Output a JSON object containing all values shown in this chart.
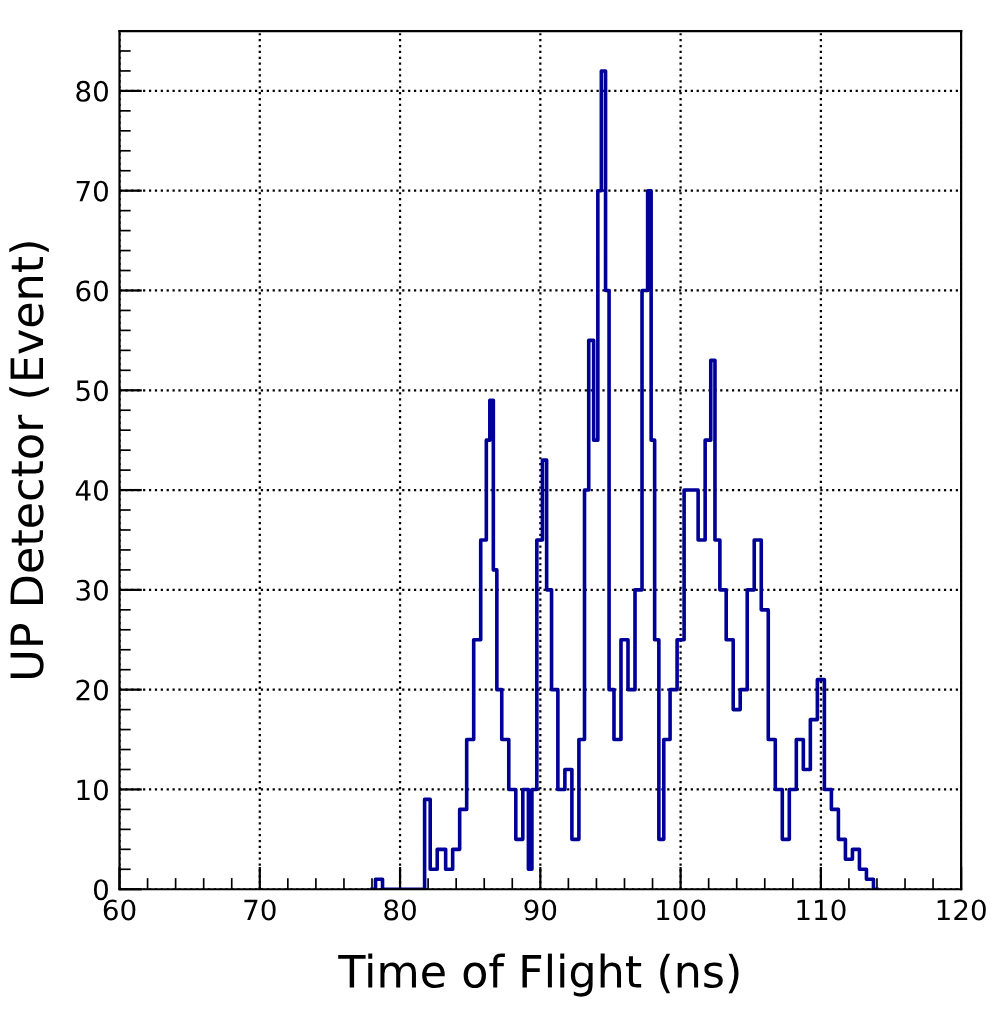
{
  "chart_data": {
    "type": "step",
    "xlabel": "Time of Flight (ns)",
    "ylabel": "UP Detector (Event)",
    "xlim": [
      60,
      120
    ],
    "xticks": [
      60,
      70,
      80,
      90,
      100,
      110,
      120
    ],
    "ylim": [
      0,
      86
    ],
    "yticks": [
      0,
      10,
      20,
      30,
      40,
      50,
      60,
      70,
      80
    ],
    "grid": true,
    "legend": false,
    "series": [
      {
        "color": "#000099",
        "x": [
          78,
          78.5,
          79,
          81.5,
          82,
          82.3,
          83,
          83.5,
          84,
          84.5,
          85,
          85.5,
          86,
          86.3,
          86.5,
          86.8,
          87,
          87.5,
          88,
          88.5,
          89,
          89.3,
          89.5,
          90,
          90.3,
          90.6,
          91,
          91.5,
          92,
          92.5,
          93,
          93.3,
          93.6,
          94,
          94.2,
          94.5,
          94.8,
          95,
          95.5,
          96,
          96.5,
          97,
          97.5,
          97.8,
          98,
          98.3,
          98.6,
          99,
          99.5,
          100,
          100.5,
          101,
          101.5,
          102,
          102.3,
          102.6,
          103,
          103.5,
          104,
          104.5,
          105,
          105.5,
          106,
          106.5,
          107,
          107.5,
          108,
          108.5,
          109,
          109.5,
          110,
          110.5,
          111,
          111.5,
          112,
          112.5,
          113,
          113.5,
          114
        ],
        "values": [
          0,
          1,
          0,
          0,
          9,
          2,
          4,
          2,
          4,
          8,
          15,
          25,
          35,
          45,
          49,
          32,
          20,
          15,
          10,
          5,
          10,
          2,
          10,
          35,
          43,
          30,
          20,
          10,
          12,
          5,
          15,
          40,
          55,
          45,
          70,
          82,
          60,
          20,
          15,
          25,
          20,
          30,
          60,
          70,
          45,
          25,
          5,
          15,
          20,
          25,
          40,
          40,
          35,
          45,
          53,
          35,
          30,
          25,
          18,
          20,
          30,
          35,
          28,
          15,
          10,
          5,
          10,
          15,
          12,
          17,
          21,
          10,
          8,
          5,
          3,
          4,
          2,
          1,
          0
        ]
      }
    ]
  }
}
